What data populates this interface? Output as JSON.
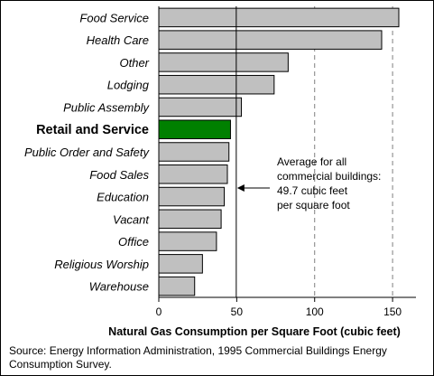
{
  "chart_data": {
    "type": "bar",
    "orientation": "horizontal",
    "categories": [
      "Food Service",
      "Health Care",
      "Other",
      "Lodging",
      "Public Assembly",
      "Retail and Service",
      "Public Order and Safety",
      "Food Sales",
      "Education",
      "Vacant",
      "Office",
      "Religious Worship",
      "Warehouse"
    ],
    "values": [
      154,
      143,
      83,
      74,
      53,
      46,
      45,
      44,
      42,
      40,
      37,
      28,
      23
    ],
    "highlight": "Retail and Service",
    "xlabel": "Natural Gas Consumption per Square Foot (cubic feet)",
    "xlim": [
      0,
      165
    ],
    "xticks": [
      0,
      50,
      100,
      150
    ],
    "gridlines": "dashed vertical at 100 and 150",
    "average_line": {
      "value": 49.7,
      "annotation": [
        "Average for all",
        "commercial buildings:",
        "49.7 cubic feet",
        "per square foot"
      ]
    },
    "legend": "none",
    "colors": {
      "bar": "#c0c0c0",
      "highlight": "#008000",
      "outline": "#000000"
    }
  },
  "source_note": "Source:  Energy Information Administration, 1995 Commercial Buildings Energy Consumption Survey."
}
